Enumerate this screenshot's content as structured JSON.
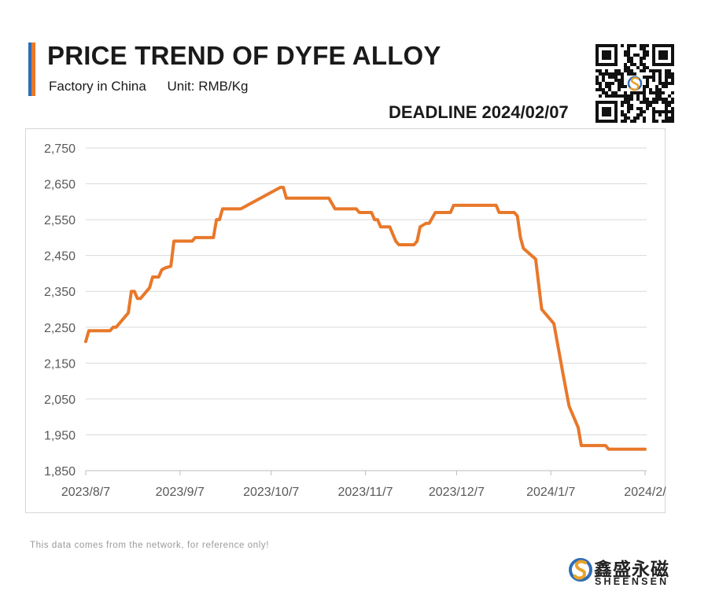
{
  "header": {
    "title": "PRICE TREND OF DYFE ALLOY",
    "subtitle_location": "Factory in China",
    "subtitle_unit": "Unit: RMB/Kg",
    "deadline": "DEADLINE 2024/02/07"
  },
  "footer": {
    "disclaimer": "This data comes from the network, for reference only!",
    "brand_cn": "鑫盛永磁",
    "brand_en": "SHEENSEN"
  },
  "colors": {
    "line": "#e8782a",
    "accent_blue": "#2f6db5",
    "accent_orange": "#e8782a",
    "grid": "#d9d9d9"
  },
  "icons": [
    "qr-code-icon",
    "sheensen-logo-icon"
  ],
  "chart_data": {
    "type": "line",
    "title": "PRICE TREND OF DYFE ALLOY",
    "xlabel": "",
    "ylabel": "",
    "ylim": [
      1850,
      2750
    ],
    "yticks": [
      "2,750",
      "2,650",
      "2,550",
      "2,450",
      "2,350",
      "2,250",
      "2,150",
      "2,050",
      "1,950",
      "1,850"
    ],
    "xlim": [
      "2023/8/7",
      "2024/2/7"
    ],
    "xticks": [
      "2023/8/7",
      "2023/9/7",
      "2023/10/7",
      "2023/11/7",
      "2023/12/7",
      "2024/1/7",
      "2024/2/"
    ],
    "grid": true,
    "legend": "none",
    "series": [
      {
        "points": [
          [
            "2023-08-07",
            2210
          ],
          [
            "2023-08-08",
            2240
          ],
          [
            "2023-08-15",
            2240
          ],
          [
            "2023-08-16",
            2250
          ],
          [
            "2023-08-17",
            2250
          ],
          [
            "2023-08-21",
            2290
          ],
          [
            "2023-08-22",
            2350
          ],
          [
            "2023-08-23",
            2350
          ],
          [
            "2023-08-24",
            2330
          ],
          [
            "2023-08-25",
            2330
          ],
          [
            "2023-08-28",
            2360
          ],
          [
            "2023-08-29",
            2390
          ],
          [
            "2023-08-31",
            2390
          ],
          [
            "2023-09-01",
            2410
          ],
          [
            "2023-09-02",
            2415
          ],
          [
            "2023-09-04",
            2420
          ],
          [
            "2023-09-05",
            2490
          ],
          [
            "2023-09-11",
            2490
          ],
          [
            "2023-09-12",
            2500
          ],
          [
            "2023-09-18",
            2500
          ],
          [
            "2023-09-19",
            2550
          ],
          [
            "2023-09-20",
            2550
          ],
          [
            "2023-09-21",
            2580
          ],
          [
            "2023-09-27",
            2580
          ],
          [
            "2023-10-10",
            2640
          ],
          [
            "2023-10-11",
            2640
          ],
          [
            "2023-10-12",
            2610
          ],
          [
            "2023-10-26",
            2610
          ],
          [
            "2023-10-28",
            2580
          ],
          [
            "2023-11-04",
            2580
          ],
          [
            "2023-11-05",
            2570
          ],
          [
            "2023-11-09",
            2570
          ],
          [
            "2023-11-10",
            2550
          ],
          [
            "2023-11-11",
            2550
          ],
          [
            "2023-11-12",
            2530
          ],
          [
            "2023-11-15",
            2530
          ],
          [
            "2023-11-17",
            2490
          ],
          [
            "2023-11-18",
            2480
          ],
          [
            "2023-11-23",
            2480
          ],
          [
            "2023-11-24",
            2490
          ],
          [
            "2023-11-25",
            2530
          ],
          [
            "2023-11-27",
            2540
          ],
          [
            "2023-11-28",
            2540
          ],
          [
            "2023-11-30",
            2570
          ],
          [
            "2023-12-05",
            2570
          ],
          [
            "2023-12-06",
            2590
          ],
          [
            "2023-12-20",
            2590
          ],
          [
            "2023-12-21",
            2570
          ],
          [
            "2023-12-26",
            2570
          ],
          [
            "2023-12-27",
            2560
          ],
          [
            "2023-12-28",
            2500
          ],
          [
            "2023-12-29",
            2470
          ],
          [
            "2024-01-02",
            2440
          ],
          [
            "2024-01-04",
            2300
          ],
          [
            "2024-01-08",
            2260
          ],
          [
            "2024-01-11",
            2120
          ],
          [
            "2024-01-13",
            2030
          ],
          [
            "2024-01-16",
            1970
          ],
          [
            "2024-01-17",
            1920
          ],
          [
            "2024-01-25",
            1920
          ],
          [
            "2024-01-26",
            1910
          ],
          [
            "2024-02-07",
            1910
          ]
        ]
      }
    ]
  }
}
